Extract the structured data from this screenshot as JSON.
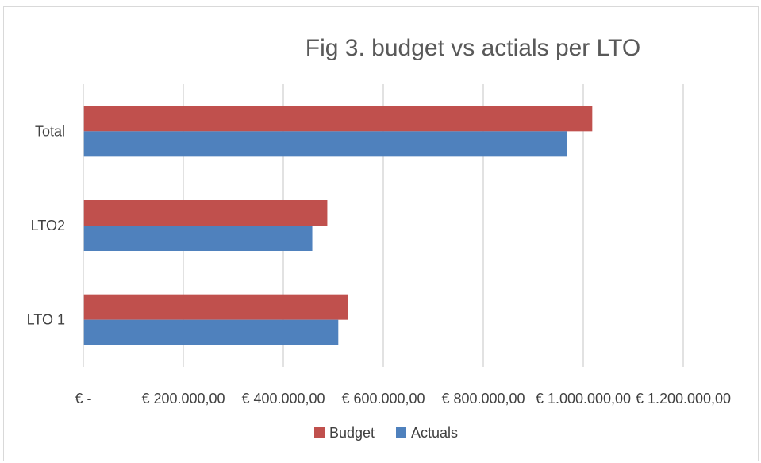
{
  "chart_data": {
    "type": "bar",
    "orientation": "horizontal",
    "title": "Fig 3. budget vs actials per LTO",
    "categories": [
      "LTO 1",
      "LTO2",
      "Total"
    ],
    "series": [
      {
        "name": "Budget",
        "color": "#c0504d",
        "values": [
          530000,
          488000,
          1018000
        ]
      },
      {
        "name": "Actuals",
        "color": "#4f81bd",
        "values": [
          510000,
          458000,
          968000
        ]
      }
    ],
    "xlim": [
      0,
      1200000
    ],
    "x_ticks": [
      0,
      200000,
      400000,
      600000,
      800000,
      1000000,
      1200000
    ],
    "x_tick_labels": [
      "€ -",
      "€ 200.000,00",
      "€ 400.000,00",
      "€ 600.000,00",
      "€ 800.000,00",
      "€ 1.000.000,00",
      "€ 1.200.000,00"
    ],
    "grid": true,
    "legend_position": "bottom"
  }
}
